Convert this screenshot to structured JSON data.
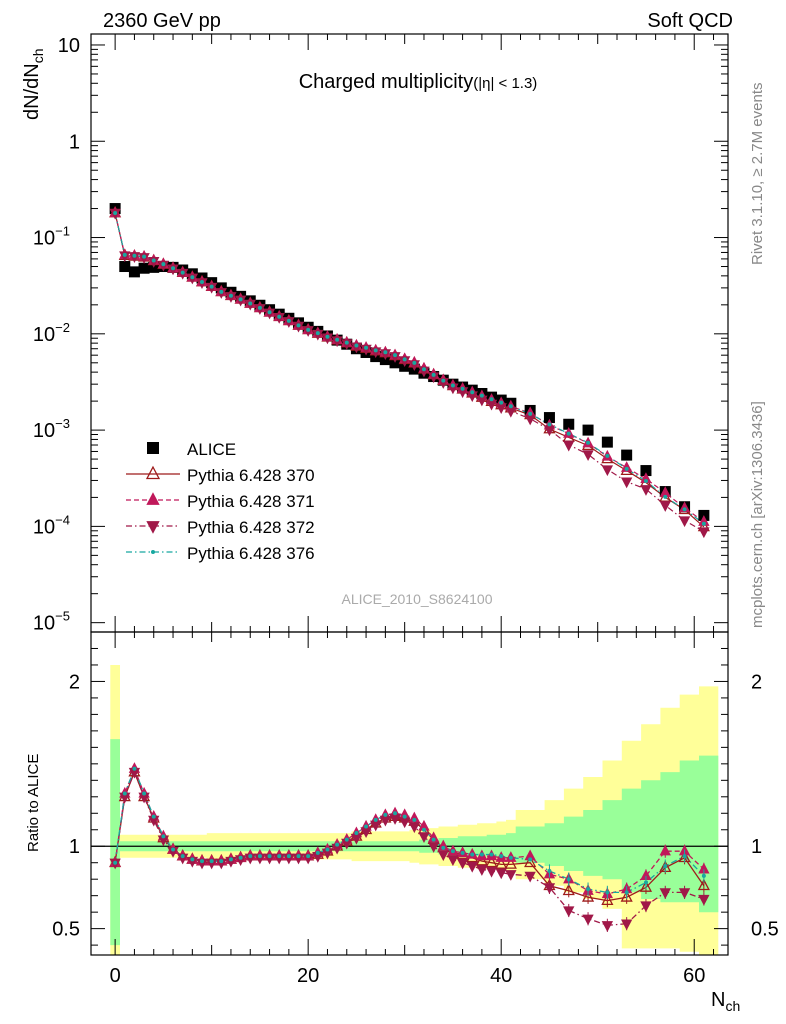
{
  "header": {
    "left": "2360 GeV pp",
    "right": "Soft QCD"
  },
  "side": {
    "top": "Rivet 3.1.10, ≥ 2.7M events",
    "bottom": "mcplots.cern.ch [arXiv:1306.3436]"
  },
  "colors": {
    "alice": "#000000",
    "p370": "#9e1b1b",
    "p371": "#c0185a",
    "p372": "#a01848",
    "p376": "#18a8a0",
    "band_inner": "#99ff99",
    "band_outer": "#ffff99"
  },
  "chart_data": [
    {
      "type": "scatter",
      "title": "Charged multiplicity",
      "title_suffix": "(|η| < 1.3)",
      "xlabel": "N",
      "xlabel_sub": "ch",
      "ylabel": "dN/dN",
      "ylabel_sub": "ch",
      "yscale": "log",
      "xlim": [
        -2.5,
        63.5
      ],
      "ylim": [
        8e-06,
        13
      ],
      "yticks": [
        {
          "v": 10,
          "label": "10"
        },
        {
          "v": 1,
          "label": "1"
        },
        {
          "v": 0.1,
          "label": "10",
          "exp": "−1"
        },
        {
          "v": 0.01,
          "label": "10",
          "exp": "−2"
        },
        {
          "v": 0.001,
          "label": "10",
          "exp": "−3"
        },
        {
          "v": 0.0001,
          "label": "10",
          "exp": "−4"
        },
        {
          "v": 1e-05,
          "label": "10",
          "exp": "−5"
        }
      ],
      "watermark": "ALICE_2010_S8624100",
      "legend_position": "lower-left",
      "alice_x": [
        0,
        1,
        2,
        3,
        4,
        5,
        6,
        7,
        8,
        9,
        10,
        11,
        12,
        13,
        14,
        15,
        16,
        17,
        18,
        19,
        20,
        21,
        22,
        23,
        24,
        25,
        26,
        27,
        28,
        29,
        30,
        31,
        32,
        33,
        34,
        35,
        36,
        37,
        38,
        39,
        40,
        41,
        43,
        45,
        47,
        49,
        51,
        53,
        55,
        57,
        59,
        61
      ],
      "alice_y": [
        0.2,
        0.05,
        0.044,
        0.048,
        0.049,
        0.05,
        0.049,
        0.046,
        0.042,
        0.038,
        0.034,
        0.03,
        0.027,
        0.0245,
        0.022,
        0.0198,
        0.0178,
        0.016,
        0.0145,
        0.013,
        0.0117,
        0.0106,
        0.0095,
        0.0086,
        0.0078,
        0.007,
        0.0064,
        0.0058,
        0.0054,
        0.005,
        0.0046,
        0.0043,
        0.0039,
        0.0036,
        0.0033,
        0.003,
        0.0028,
        0.0026,
        0.0024,
        0.0022,
        0.00205,
        0.0019,
        0.0016,
        0.00135,
        0.00115,
        0.001,
        0.00075,
        0.00055,
        0.00038,
        0.00023,
        0.00016,
        0.00013
      ],
      "series": [
        {
          "name": "ALICE",
          "marker": "square"
        },
        {
          "name": "Pythia 6.428 370",
          "marker": "open-triangle-up",
          "line": "solid"
        },
        {
          "name": "Pythia 6.428 371",
          "marker": "triangle-up",
          "line": "dashed"
        },
        {
          "name": "Pythia 6.428 372",
          "marker": "triangle-down",
          "line": "dashdot"
        },
        {
          "name": "Pythia 6.428 376",
          "marker": "dot",
          "line": "dashdot"
        }
      ]
    },
    {
      "type": "line",
      "ylabel": "Ratio to ALICE",
      "xlim": [
        -2.5,
        63.5
      ],
      "ylim": [
        0.34,
        2.3
      ],
      "xticks": [
        0,
        20,
        40,
        60
      ],
      "yticks": [
        {
          "v": 0.5,
          "label": "0.5"
        },
        {
          "v": 1,
          "label": "1"
        },
        {
          "v": 2,
          "label": "2"
        }
      ],
      "reference": 1,
      "band_x": [
        -0.5,
        0.5,
        1.5,
        2.5,
        3.5,
        4.5,
        5.5,
        6.5,
        7.5,
        8.5,
        9.5,
        10.5,
        11.5,
        12.5,
        13.5,
        14.5,
        15.5,
        16.5,
        17.5,
        18.5,
        19.5,
        20.5,
        21.5,
        22.5,
        23.5,
        24.5,
        25.5,
        26.5,
        27.5,
        28.5,
        29.5,
        30.5,
        31.5,
        32.5,
        33.5,
        34.5,
        35.5,
        36.5,
        37.5,
        38.5,
        39.5,
        40.5,
        41.5,
        44.5,
        46.5,
        48.5,
        50.5,
        52.5,
        54.5,
        56.5,
        58.5,
        60.5,
        62.5
      ],
      "band_inner_lo": [
        0.4,
        0.97,
        0.97,
        0.97,
        0.97,
        0.97,
        0.97,
        0.97,
        0.97,
        0.97,
        0.97,
        0.97,
        0.97,
        0.97,
        0.97,
        0.97,
        0.97,
        0.97,
        0.97,
        0.97,
        0.97,
        0.97,
        0.97,
        0.97,
        0.97,
        0.97,
        0.97,
        0.97,
        0.97,
        0.97,
        0.97,
        0.97,
        0.96,
        0.96,
        0.95,
        0.95,
        0.94,
        0.94,
        0.94,
        0.93,
        0.93,
        0.92,
        0.9,
        0.88,
        0.85,
        0.82,
        0.8,
        0.72,
        0.68,
        0.66,
        0.66,
        0.6
      ],
      "band_inner_hi": [
        1.65,
        1.03,
        1.03,
        1.03,
        1.03,
        1.03,
        1.03,
        1.03,
        1.03,
        1.03,
        1.03,
        1.03,
        1.03,
        1.03,
        1.03,
        1.03,
        1.03,
        1.03,
        1.03,
        1.03,
        1.03,
        1.03,
        1.03,
        1.03,
        1.03,
        1.03,
        1.03,
        1.03,
        1.03,
        1.03,
        1.03,
        1.03,
        1.04,
        1.04,
        1.05,
        1.05,
        1.06,
        1.06,
        1.06,
        1.07,
        1.07,
        1.08,
        1.12,
        1.14,
        1.18,
        1.22,
        1.28,
        1.35,
        1.4,
        1.45,
        1.52,
        1.55
      ],
      "band_outer_lo": [
        0.34,
        0.93,
        0.93,
        0.93,
        0.93,
        0.93,
        0.93,
        0.93,
        0.93,
        0.93,
        0.92,
        0.92,
        0.92,
        0.92,
        0.92,
        0.92,
        0.92,
        0.92,
        0.92,
        0.92,
        0.92,
        0.92,
        0.92,
        0.92,
        0.92,
        0.91,
        0.91,
        0.91,
        0.91,
        0.91,
        0.91,
        0.9,
        0.89,
        0.89,
        0.88,
        0.88,
        0.87,
        0.87,
        0.86,
        0.86,
        0.85,
        0.84,
        0.8,
        0.76,
        0.72,
        0.68,
        0.62,
        0.38,
        0.38,
        0.38,
        0.36,
        0.34
      ],
      "band_outer_hi": [
        2.1,
        1.07,
        1.07,
        1.07,
        1.07,
        1.07,
        1.07,
        1.07,
        1.07,
        1.07,
        1.08,
        1.08,
        1.08,
        1.08,
        1.08,
        1.08,
        1.08,
        1.08,
        1.08,
        1.08,
        1.08,
        1.08,
        1.08,
        1.08,
        1.08,
        1.09,
        1.09,
        1.09,
        1.09,
        1.09,
        1.09,
        1.1,
        1.11,
        1.11,
        1.12,
        1.12,
        1.13,
        1.13,
        1.14,
        1.14,
        1.15,
        1.16,
        1.22,
        1.28,
        1.35,
        1.42,
        1.52,
        1.64,
        1.74,
        1.84,
        1.92,
        1.97
      ],
      "x": [
        0,
        1,
        2,
        3,
        4,
        5,
        6,
        7,
        8,
        9,
        10,
        11,
        12,
        13,
        14,
        15,
        16,
        17,
        18,
        19,
        20,
        21,
        22,
        23,
        24,
        25,
        26,
        27,
        28,
        29,
        30,
        31,
        32,
        33,
        34,
        35,
        36,
        37,
        38,
        39,
        40,
        41,
        43,
        45,
        47,
        49,
        51,
        53,
        55,
        57,
        59,
        61
      ],
      "ratio_370": [
        0.9,
        1.3,
        1.45,
        1.3,
        1.17,
        1.05,
        0.98,
        0.94,
        0.92,
        0.91,
        0.91,
        0.91,
        0.92,
        0.93,
        0.94,
        0.94,
        0.94,
        0.94,
        0.94,
        0.94,
        0.94,
        0.95,
        0.97,
        1.0,
        1.03,
        1.06,
        1.1,
        1.14,
        1.17,
        1.18,
        1.17,
        1.15,
        1.1,
        1.04,
        0.99,
        0.96,
        0.95,
        0.93,
        0.91,
        0.9,
        0.89,
        0.89,
        0.9,
        0.76,
        0.73,
        0.69,
        0.67,
        0.69,
        0.75,
        0.87,
        0.93,
        0.76
      ],
      "ratio_371": [
        0.9,
        1.32,
        1.47,
        1.32,
        1.18,
        1.06,
        0.98,
        0.94,
        0.92,
        0.91,
        0.91,
        0.91,
        0.92,
        0.93,
        0.94,
        0.94,
        0.94,
        0.94,
        0.94,
        0.94,
        0.94,
        0.96,
        0.98,
        1.01,
        1.04,
        1.08,
        1.12,
        1.16,
        1.19,
        1.2,
        1.19,
        1.17,
        1.12,
        1.05,
        1.0,
        0.97,
        0.96,
        0.95,
        0.94,
        0.94,
        0.93,
        0.93,
        0.94,
        0.83,
        0.8,
        0.73,
        0.71,
        0.74,
        0.82,
        0.97,
        0.97,
        0.86
      ],
      "ratio_372": [
        0.9,
        1.3,
        1.45,
        1.3,
        1.16,
        1.04,
        0.97,
        0.93,
        0.91,
        0.9,
        0.9,
        0.9,
        0.91,
        0.92,
        0.93,
        0.93,
        0.93,
        0.93,
        0.93,
        0.93,
        0.93,
        0.94,
        0.96,
        0.99,
        1.02,
        1.05,
        1.09,
        1.13,
        1.16,
        1.17,
        1.15,
        1.12,
        1.06,
        1.0,
        0.95,
        0.92,
        0.9,
        0.88,
        0.86,
        0.85,
        0.84,
        0.83,
        0.82,
        0.75,
        0.61,
        0.56,
        0.52,
        0.53,
        0.64,
        0.72,
        0.72,
        0.68
      ],
      "ratio_376": [
        0.9,
        1.32,
        1.47,
        1.32,
        1.18,
        1.06,
        0.98,
        0.94,
        0.92,
        0.91,
        0.91,
        0.91,
        0.92,
        0.93,
        0.94,
        0.94,
        0.94,
        0.94,
        0.94,
        0.94,
        0.94,
        0.96,
        0.98,
        1.01,
        1.04,
        1.08,
        1.12,
        1.16,
        1.19,
        1.2,
        1.18,
        1.16,
        1.1,
        1.04,
        0.99,
        0.97,
        0.96,
        0.95,
        0.95,
        0.95,
        0.94,
        0.93,
        0.92,
        0.85,
        0.8,
        0.74,
        0.72,
        0.72,
        0.78,
        0.88,
        0.94,
        0.82
      ]
    }
  ]
}
